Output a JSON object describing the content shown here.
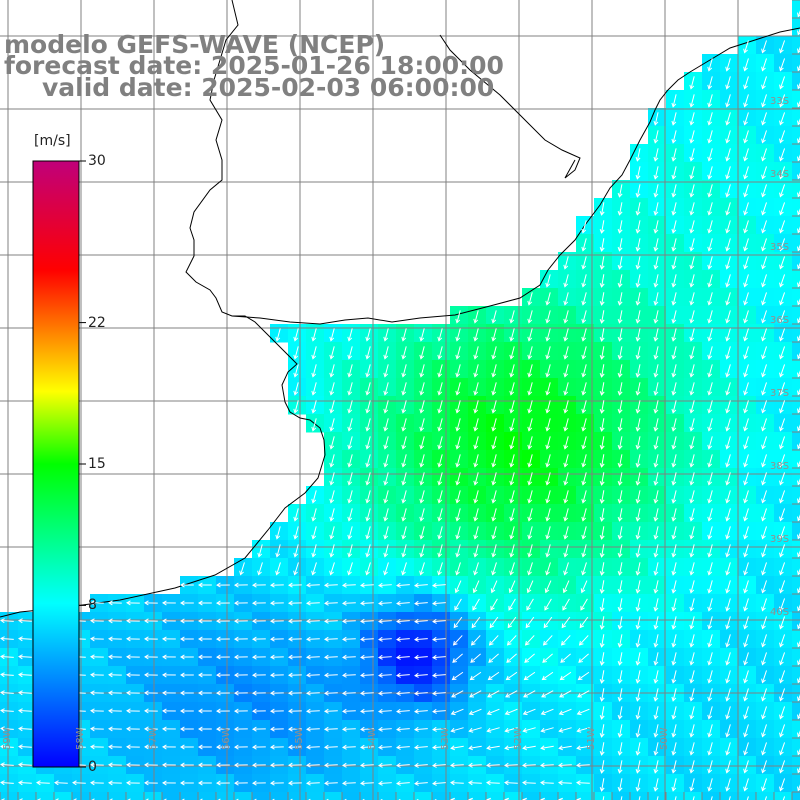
{
  "title": {
    "line1": "modelo GEFS-WAVE (NCEP)",
    "line2": "forecast date: 2025-01-26 18:00:00",
    "line3": "valid date: 2025-02-03 06:00:00"
  },
  "colorbar": {
    "unit": "[m/s]",
    "min": 0,
    "max": 30,
    "ticks": [
      "0",
      "8",
      "15",
      "22",
      "30"
    ],
    "tick_values": [
      0,
      8,
      15,
      22,
      30
    ],
    "colors": [
      "#0000ff",
      "#00ffff",
      "#00ff00",
      "#ffff00",
      "#ff0000",
      "#c0007a"
    ]
  },
  "map": {
    "grid_color": "#808080",
    "coast_color": "#000000",
    "arrow_color": "#ffffff",
    "lat_labels": [
      "33S",
      "34S",
      "35S",
      "36S",
      "37S",
      "38S",
      "39S",
      "40S"
    ],
    "lon_labels": [
      "59W",
      "58W",
      "57W",
      "56W",
      "55W",
      "54W",
      "53W",
      "52W",
      "51W",
      "50W"
    ]
  }
}
